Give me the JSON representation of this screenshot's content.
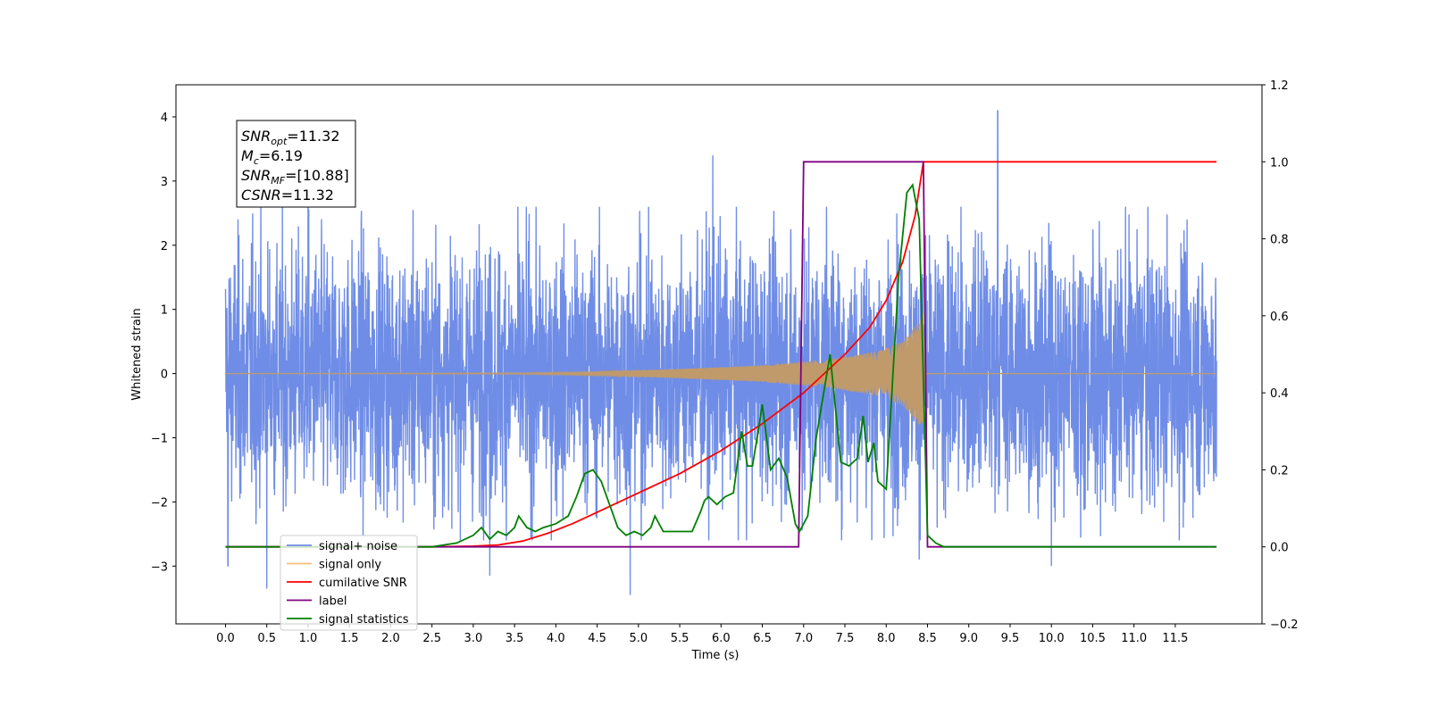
{
  "chart_data": {
    "type": "line",
    "xlabel": "Time (s)",
    "ylabel": "Whitened strain",
    "xlim": [
      -0.6,
      12.55
    ],
    "ylim": [
      -3.9,
      4.5
    ],
    "y2lim": [
      -0.2,
      1.2
    ],
    "xticks": [
      "0.0",
      "0.5",
      "1.0",
      "1.5",
      "2.0",
      "2.5",
      "3.0",
      "3.5",
      "4.0",
      "4.5",
      "5.0",
      "5.5",
      "6.0",
      "6.5",
      "7.0",
      "7.5",
      "8.0",
      "8.5",
      "9.0",
      "9.5",
      "10.0",
      "10.5",
      "11.0",
      "11.5"
    ],
    "yticks": [
      "−3",
      "−2",
      "−1",
      "0",
      "1",
      "2",
      "3",
      "4"
    ],
    "y2ticks": [
      "−0.2",
      "0.0",
      "0.2",
      "0.4",
      "0.6",
      "0.8",
      "1.0",
      "1.2"
    ],
    "info_box": {
      "lines": [
        {
          "main": "SNR",
          "sub": "opt",
          "value": "=11.32"
        },
        {
          "main": "M",
          "sub": "c",
          "value": "=6.19"
        },
        {
          "main": "SNR",
          "sub": "MF",
          "value": "=[10.88]"
        },
        {
          "main": "CSNR",
          "sub": "",
          "value": "=11.32"
        }
      ]
    },
    "legend": {
      "placement": "lower-left",
      "entries": [
        {
          "label": "signal+ noise",
          "color": "#6f8de6"
        },
        {
          "label": "signal only",
          "color": "#f5c07a"
        },
        {
          "label": "cumilative SNR",
          "color": "#ff0000"
        },
        {
          "label": "label",
          "color": "#800080"
        },
        {
          "label": "signal statistics",
          "color": "#008000"
        }
      ]
    },
    "series": [
      {
        "name": "signal+ noise",
        "axis": "left",
        "color": "#6f8de6",
        "x_range": [
          0.0,
          12.0
        ],
        "typical_amplitude": 1.6,
        "notable_peaks": [
          [
            0.03,
            -3.0
          ],
          [
            0.5,
            -3.35
          ],
          [
            1.0,
            3.3
          ],
          [
            3.2,
            -3.15
          ],
          [
            4.9,
            -3.45
          ],
          [
            5.9,
            3.4
          ],
          [
            8.4,
            -2.9
          ],
          [
            9.35,
            4.1
          ],
          [
            10.0,
            -3.0
          ]
        ]
      },
      {
        "name": "signal only",
        "axis": "left",
        "color": "#f5c07a",
        "chirp_envelope": [
          [
            0.0,
            0.0
          ],
          [
            3.5,
            0.01
          ],
          [
            4.5,
            0.03
          ],
          [
            5.5,
            0.07
          ],
          [
            6.5,
            0.13
          ],
          [
            7.3,
            0.22
          ],
          [
            7.9,
            0.35
          ],
          [
            8.2,
            0.5
          ],
          [
            8.4,
            0.8
          ],
          [
            8.45,
            0.95
          ],
          [
            8.47,
            0.0
          ],
          [
            12.0,
            0.0
          ]
        ]
      },
      {
        "name": "cumilative SNR",
        "axis": "right",
        "color": "#ff0000",
        "x": [
          0.0,
          2.5,
          3.0,
          3.3,
          3.6,
          3.9,
          4.2,
          4.5,
          5.0,
          5.5,
          6.0,
          6.5,
          7.0,
          7.5,
          7.8,
          8.0,
          8.2,
          8.35,
          8.45,
          12.0
        ],
        "y": [
          0.0,
          0.0,
          0.002,
          0.005,
          0.015,
          0.035,
          0.06,
          0.09,
          0.14,
          0.19,
          0.25,
          0.32,
          0.4,
          0.5,
          0.57,
          0.64,
          0.74,
          0.86,
          1.0,
          1.0
        ]
      },
      {
        "name": "label",
        "axis": "right",
        "color": "#800080",
        "x": [
          0.0,
          6.94,
          7.0,
          8.45,
          8.5,
          12.0
        ],
        "y": [
          0.0,
          0.0,
          1.0,
          1.0,
          0.0,
          0.0
        ]
      },
      {
        "name": "signal statistics",
        "axis": "right",
        "color": "#008000",
        "x": [
          0.0,
          1.0,
          2.0,
          2.5,
          2.8,
          3.0,
          3.1,
          3.2,
          3.3,
          3.4,
          3.5,
          3.55,
          3.65,
          3.75,
          3.85,
          4.0,
          4.15,
          4.25,
          4.35,
          4.45,
          4.55,
          4.65,
          4.75,
          4.85,
          4.95,
          5.05,
          5.15,
          5.2,
          5.3,
          5.5,
          5.65,
          5.75,
          5.8,
          5.85,
          5.95,
          6.05,
          6.15,
          6.25,
          6.32,
          6.38,
          6.45,
          6.5,
          6.6,
          6.7,
          6.8,
          6.9,
          6.95,
          7.05,
          7.15,
          7.32,
          7.45,
          7.55,
          7.65,
          7.72,
          7.78,
          7.85,
          7.9,
          8.0,
          8.15,
          8.25,
          8.32,
          8.4,
          8.5,
          8.6,
          8.7,
          9.0,
          12.0
        ],
        "y": [
          0.0,
          0.0,
          0.0,
          0.0,
          0.01,
          0.03,
          0.05,
          0.02,
          0.04,
          0.03,
          0.05,
          0.08,
          0.05,
          0.04,
          0.05,
          0.06,
          0.08,
          0.13,
          0.19,
          0.2,
          0.17,
          0.11,
          0.05,
          0.03,
          0.04,
          0.03,
          0.05,
          0.08,
          0.04,
          0.04,
          0.04,
          0.09,
          0.12,
          0.13,
          0.11,
          0.13,
          0.14,
          0.3,
          0.21,
          0.21,
          0.3,
          0.37,
          0.2,
          0.23,
          0.18,
          0.06,
          0.04,
          0.08,
          0.28,
          0.5,
          0.22,
          0.21,
          0.23,
          0.34,
          0.22,
          0.27,
          0.17,
          0.15,
          0.7,
          0.92,
          0.94,
          0.85,
          0.03,
          0.01,
          0.0,
          0.0,
          0.0
        ]
      }
    ]
  }
}
